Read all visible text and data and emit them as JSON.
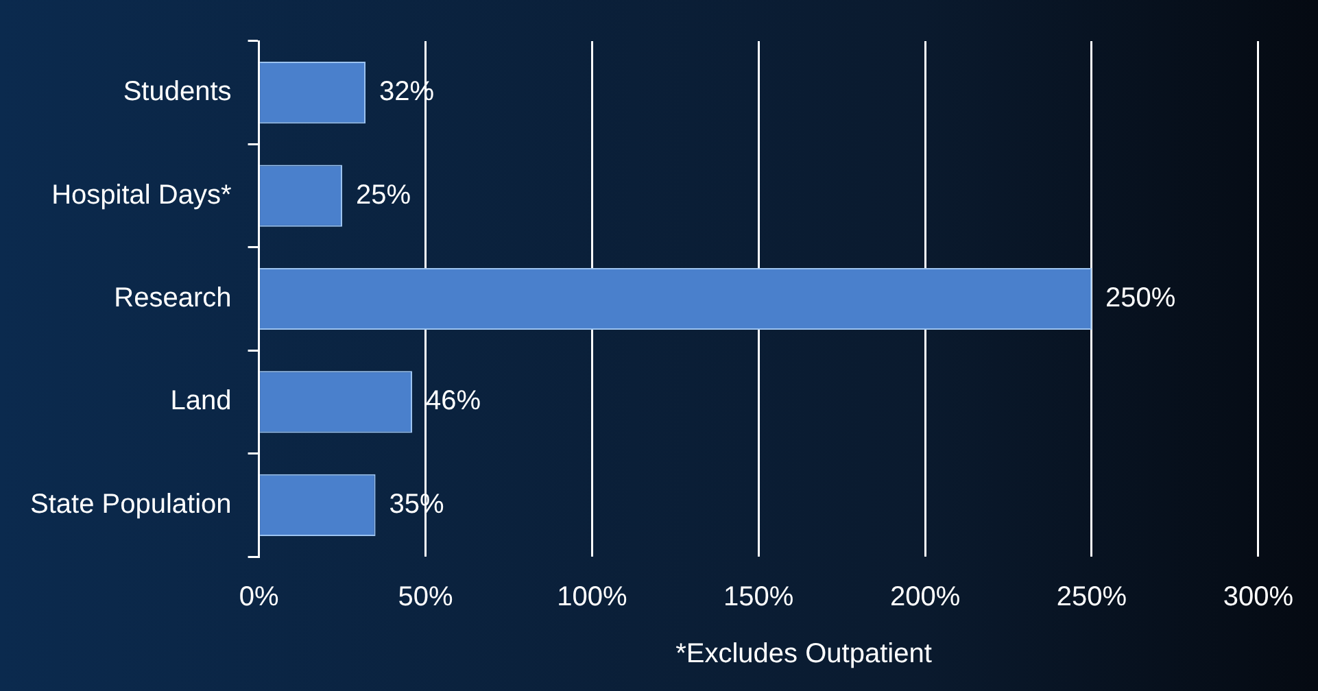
{
  "chart_data": {
    "type": "bar",
    "orientation": "horizontal",
    "categories": [
      "Students",
      "Hospital Days*",
      "Research",
      "Land",
      "State Population"
    ],
    "values": [
      32,
      25,
      250,
      46,
      35
    ],
    "value_labels": [
      "32%",
      "25%",
      "250%",
      "46%",
      "35%"
    ],
    "color": "#4a80cc",
    "xlim": [
      0,
      300
    ],
    "xticks": [
      {
        "value": 0,
        "label": "0%"
      },
      {
        "value": 50,
        "label": "50%"
      },
      {
        "value": 100,
        "label": "100%"
      },
      {
        "value": 150,
        "label": "150%"
      },
      {
        "value": 200,
        "label": "200%"
      },
      {
        "value": 250,
        "label": "250%"
      },
      {
        "value": 300,
        "label": "300%"
      }
    ],
    "grid": "x",
    "legend": false,
    "annotations": [
      "*Excludes Outpatient"
    ]
  }
}
